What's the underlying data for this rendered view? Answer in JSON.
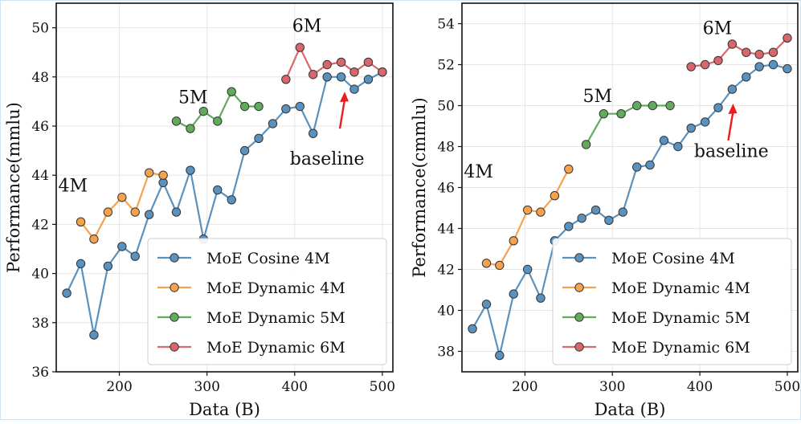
{
  "legend": [
    {
      "name": "MoE Cosine 4M",
      "color": "#5a92bf"
    },
    {
      "name": "MoE Dynamic 4M",
      "color": "#f5a24f"
    },
    {
      "name": "MoE Dynamic 5M",
      "color": "#62ab5c"
    },
    {
      "name": "MoE Dynamic 6M",
      "color": "#d9666a"
    }
  ],
  "chart_data": [
    {
      "type": "line",
      "xlabel": "Data (B)",
      "ylabel": "Performance(mmlu)",
      "xlim": [
        128,
        512
      ],
      "ylim": [
        36,
        51
      ],
      "xticks": [
        200,
        300,
        400,
        500
      ],
      "yticks": [
        36,
        38,
        40,
        42,
        44,
        46,
        48,
        50
      ],
      "grid": true,
      "legend_position": "lower-right",
      "annotations": [
        {
          "text": "4M",
          "x": 147,
          "y": 43.6
        },
        {
          "text": "5M",
          "x": 284,
          "y": 47.2
        },
        {
          "text": "6M",
          "x": 414,
          "y": 50.1
        },
        {
          "text": "baseline",
          "x": 437,
          "y": 44.7,
          "arrow_to": [
            457,
            47.4
          ]
        }
      ],
      "series": [
        {
          "name": "MoE Cosine 4M",
          "color": "#5a92bf",
          "x": [
            140,
            156,
            171,
            187,
            203,
            218,
            234,
            250,
            265,
            281,
            296,
            312,
            328,
            343,
            359,
            375,
            390,
            406,
            421,
            437,
            453,
            468,
            484,
            500
          ],
          "y": [
            39.2,
            40.4,
            37.5,
            40.3,
            41.1,
            40.7,
            42.4,
            43.7,
            42.5,
            44.2,
            41.4,
            43.4,
            43.0,
            45.0,
            45.5,
            46.1,
            46.7,
            46.8,
            45.7,
            48.0,
            48.0,
            47.5,
            47.9,
            48.2
          ]
        },
        {
          "name": "MoE Dynamic 4M",
          "color": "#f5a24f",
          "x": [
            156,
            171,
            187,
            203,
            218,
            234,
            250
          ],
          "y": [
            42.1,
            41.4,
            42.5,
            43.1,
            42.5,
            44.1,
            44.0
          ]
        },
        {
          "name": "MoE Dynamic 5M",
          "color": "#62ab5c",
          "x": [
            265,
            281,
            296,
            312,
            328,
            343,
            359
          ],
          "y": [
            46.2,
            45.9,
            46.6,
            46.2,
            47.4,
            46.8,
            46.8
          ]
        },
        {
          "name": "MoE Dynamic 6M",
          "color": "#d9666a",
          "x": [
            390,
            406,
            421,
            437,
            453,
            468,
            484,
            500
          ],
          "y": [
            47.9,
            49.2,
            48.1,
            48.5,
            48.6,
            48.2,
            48.6,
            48.2
          ]
        }
      ]
    },
    {
      "type": "line",
      "xlabel": "Data (B)",
      "ylabel": "Performance(cmmlu)",
      "xlim": [
        128,
        512
      ],
      "ylim": [
        37,
        55
      ],
      "xticks": [
        200,
        300,
        400,
        500
      ],
      "yticks": [
        38,
        40,
        42,
        44,
        46,
        48,
        50,
        52,
        54
      ],
      "grid": true,
      "legend_position": "lower-right",
      "annotations": [
        {
          "text": "4M",
          "x": 147,
          "y": 46.8
        },
        {
          "text": "5M",
          "x": 283,
          "y": 50.5
        },
        {
          "text": "6M",
          "x": 420,
          "y": 53.8
        },
        {
          "text": "baseline",
          "x": 436,
          "y": 47.8,
          "arrow_to": [
            438,
            50.1
          ]
        }
      ],
      "series": [
        {
          "name": "MoE Cosine 4M",
          "color": "#5a92bf",
          "x": [
            140,
            156,
            171,
            187,
            203,
            218,
            234,
            250,
            265,
            281,
            296,
            312,
            328,
            343,
            359,
            375,
            390,
            406,
            421,
            437,
            453,
            468,
            484,
            500
          ],
          "y": [
            39.1,
            40.3,
            37.8,
            40.8,
            42.0,
            40.6,
            43.4,
            44.1,
            44.5,
            44.9,
            44.4,
            44.8,
            47.0,
            47.1,
            48.3,
            48.0,
            48.9,
            49.2,
            49.9,
            50.8,
            51.4,
            51.9,
            52.0,
            51.8
          ]
        },
        {
          "name": "MoE Dynamic 4M",
          "color": "#f5a24f",
          "x": [
            156,
            171,
            187,
            203,
            218,
            234,
            250
          ],
          "y": [
            42.3,
            42.2,
            43.4,
            44.9,
            44.8,
            45.6,
            46.9
          ]
        },
        {
          "name": "MoE Dynamic 5M",
          "color": "#62ab5c",
          "x": [
            270,
            290,
            310,
            328,
            346,
            366
          ],
          "y": [
            48.1,
            49.6,
            49.6,
            50.0,
            50.0,
            50.0
          ]
        },
        {
          "name": "MoE Dynamic 6M",
          "color": "#d9666a",
          "x": [
            390,
            406,
            421,
            437,
            453,
            468,
            484,
            500
          ],
          "y": [
            51.9,
            52.0,
            52.2,
            53.0,
            52.6,
            52.5,
            52.6,
            53.3
          ]
        }
      ]
    }
  ]
}
